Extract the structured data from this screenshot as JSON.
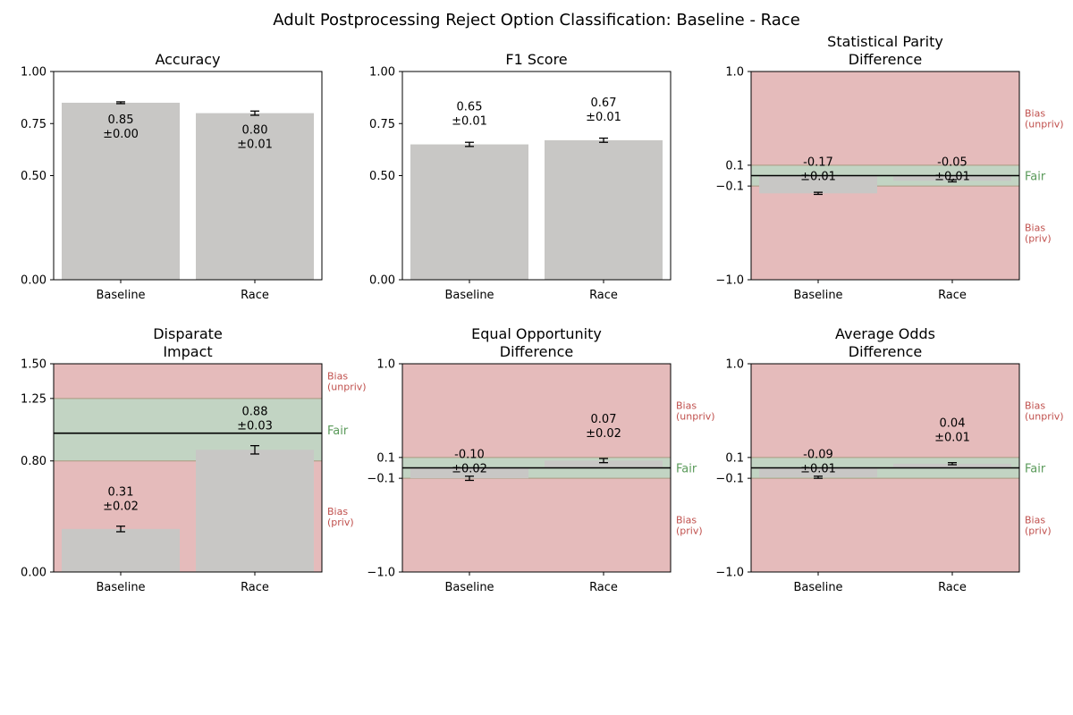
{
  "figure": {
    "title": "Adult Postprocessing Reject Option Classification: Baseline - Race"
  },
  "colors": {
    "bar": "#c8c7c5",
    "bias_region": "#e5bbbb",
    "fair_region": "#c2d4c3",
    "fair_label": "#5a9a5a",
    "bias_label": "#c0504d",
    "axis": "#000000"
  },
  "chart_data": [
    {
      "type": "bar",
      "title": "Accuracy",
      "categories": [
        "Baseline",
        "Race"
      ],
      "values": [
        0.85,
        0.8
      ],
      "errors": [
        0.0,
        0.01
      ],
      "value_labels": [
        "0.85\n±0.00",
        "0.80\n±0.01"
      ],
      "ylim": [
        0,
        1
      ],
      "ytick_values": [
        0,
        0.5,
        0.75,
        1.0
      ],
      "yticks": [
        "0.00",
        "0.50",
        "0.75",
        "1.00"
      ],
      "label_position": "inside",
      "fairness": false
    },
    {
      "type": "bar",
      "title": "F1 Score",
      "categories": [
        "Baseline",
        "Race"
      ],
      "values": [
        0.65,
        0.67
      ],
      "errors": [
        0.01,
        0.01
      ],
      "value_labels": [
        "0.65\n±0.01",
        "0.67\n±0.01"
      ],
      "ylim": [
        0,
        1
      ],
      "ytick_values": [
        0,
        0.5,
        0.75,
        1.0
      ],
      "yticks": [
        "0.00",
        "0.50",
        "0.75",
        "1.00"
      ],
      "label_position": "above",
      "fairness": false
    },
    {
      "type": "bar",
      "title": "Statistical Parity\nDifference",
      "categories": [
        "Baseline",
        "Race"
      ],
      "values": [
        -0.17,
        -0.05
      ],
      "errors": [
        0.01,
        0.01
      ],
      "value_labels": [
        "-0.17\n±0.01",
        "-0.05\n±0.01"
      ],
      "ylim": [
        -1,
        1
      ],
      "ytick_values": [
        -1,
        -0.1,
        0.1,
        1
      ],
      "yticks": [
        "−1.0",
        "−0.1",
        "0.1",
        "1.0"
      ],
      "fairness": true,
      "fair_range": [
        -0.1,
        0.1
      ],
      "ideal": 0,
      "bias_upper_label": "Bias\n(unpriv)",
      "bias_lower_label": "Bias\n(priv)",
      "fair_label": "Fair"
    },
    {
      "type": "bar",
      "title": "Disparate\nImpact",
      "categories": [
        "Baseline",
        "Race"
      ],
      "values": [
        0.31,
        0.88
      ],
      "errors": [
        0.02,
        0.03
      ],
      "value_labels": [
        "0.31\n±0.02",
        "0.88\n±0.03"
      ],
      "ylim": [
        0,
        1.5
      ],
      "ytick_values": [
        0,
        0.8,
        1.25,
        1.5
      ],
      "yticks": [
        "0.00",
        "0.80",
        "1.25",
        "1.50"
      ],
      "fairness": true,
      "fair_range": [
        0.8,
        1.25
      ],
      "ideal": 1,
      "bias_upper_label": "Bias\n(unpriv)",
      "bias_lower_label": "Bias\n(priv)",
      "fair_label": "Fair"
    },
    {
      "type": "bar",
      "title": "Equal Opportunity\nDifference",
      "categories": [
        "Baseline",
        "Race"
      ],
      "values": [
        -0.1,
        0.07
      ],
      "errors": [
        0.02,
        0.02
      ],
      "value_labels": [
        "-0.10\n±0.02",
        "0.07\n±0.02"
      ],
      "ylim": [
        -1,
        1
      ],
      "ytick_values": [
        -1,
        -0.1,
        0.1,
        1
      ],
      "yticks": [
        "−1.0",
        "−0.1",
        "0.1",
        "1.0"
      ],
      "fairness": true,
      "fair_range": [
        -0.1,
        0.1
      ],
      "ideal": 0,
      "bias_upper_label": "Bias\n(unpriv)",
      "bias_lower_label": "Bias\n(priv)",
      "fair_label": "Fair"
    },
    {
      "type": "bar",
      "title": "Average Odds\nDifference",
      "categories": [
        "Baseline",
        "Race"
      ],
      "values": [
        -0.09,
        0.04
      ],
      "errors": [
        0.01,
        0.01
      ],
      "value_labels": [
        "-0.09\n±0.01",
        "0.04\n±0.01"
      ],
      "ylim": [
        -1,
        1
      ],
      "ytick_values": [
        -1,
        -0.1,
        0.1,
        1
      ],
      "yticks": [
        "−1.0",
        "−0.1",
        "0.1",
        "1.0"
      ],
      "fairness": true,
      "fair_range": [
        -0.1,
        0.1
      ],
      "ideal": 0,
      "bias_upper_label": "Bias\n(unpriv)",
      "bias_lower_label": "Bias\n(priv)",
      "fair_label": "Fair"
    }
  ]
}
